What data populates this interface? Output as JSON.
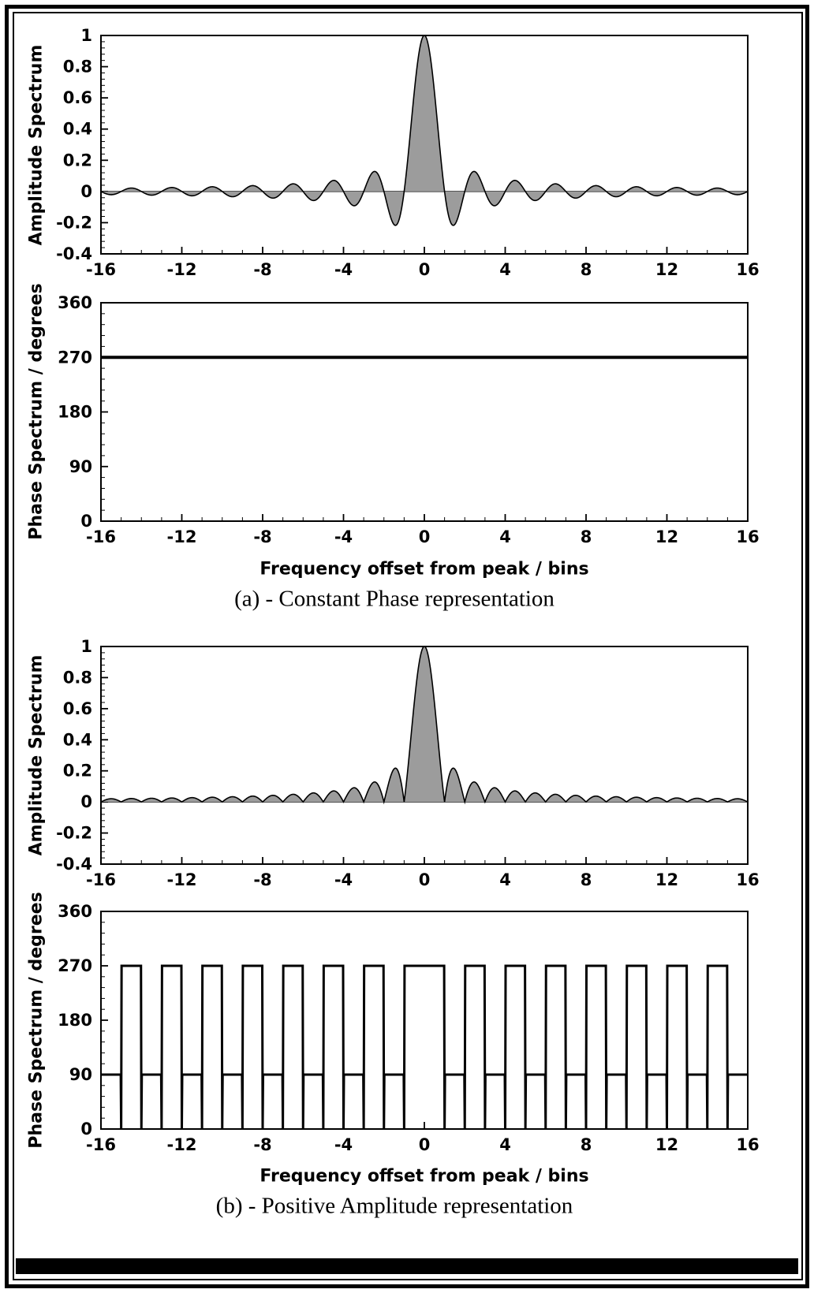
{
  "page": {
    "background": "#ffffff",
    "frame_color": "#000000"
  },
  "captions": {
    "a": "(a) - Constant Phase representation",
    "b": "(b) - Positive Amplitude representation"
  },
  "colors": {
    "area_fill": "#9c9c9c",
    "line": "#000000"
  },
  "chart_data": [
    {
      "id": "amplitude-constant-phase",
      "type": "area",
      "title": "",
      "xlabel": "",
      "ylabel": "Amplitude Spectrum",
      "xlim": [
        -16,
        16
      ],
      "ylim": [
        -0.4,
        1
      ],
      "xticks": [
        -16,
        -12,
        -8,
        -4,
        0,
        4,
        8,
        12,
        16
      ],
      "yticks": [
        -0.4,
        -0.2,
        0,
        0.2,
        0.4,
        0.6,
        0.8,
        1
      ],
      "x_minor_step": 1,
      "y_minor_step": 0.04,
      "grid": false,
      "zero_line": true,
      "series": [
        {
          "name": "sinc-amplitude",
          "formula": "sinc",
          "description": "sin(pi*x)/(pi*x), signed sidelobes alternate above and below zero",
          "fill": "#9c9c9c",
          "stroke": "#000000",
          "peak": {
            "x": 0,
            "y": 1
          },
          "zeros": "every nonzero integer bin offset",
          "symmetry": "even",
          "sidelobe_extrema": [
            {
              "x": 1.43,
              "y": -0.217
            },
            {
              "x": 2.46,
              "y": 0.128
            },
            {
              "x": 3.47,
              "y": -0.091
            },
            {
              "x": 4.48,
              "y": 0.071
            },
            {
              "x": 5.48,
              "y": -0.058
            },
            {
              "x": 6.48,
              "y": 0.049
            },
            {
              "x": 7.49,
              "y": -0.042
            },
            {
              "x": 8.49,
              "y": 0.037
            },
            {
              "x": 9.49,
              "y": -0.033
            },
            {
              "x": 10.49,
              "y": 0.03
            },
            {
              "x": 11.49,
              "y": -0.028
            },
            {
              "x": 12.49,
              "y": 0.025
            },
            {
              "x": 13.49,
              "y": -0.024
            },
            {
              "x": 14.49,
              "y": 0.022
            },
            {
              "x": 15.5,
              "y": -0.021
            }
          ]
        }
      ]
    },
    {
      "id": "phase-constant",
      "type": "line",
      "title": "",
      "xlabel": "Frequency offset from peak / bins",
      "ylabel": "Phase Spectrum / degrees",
      "xlim": [
        -16,
        16
      ],
      "ylim": [
        0,
        360
      ],
      "xticks": [
        -16,
        -12,
        -8,
        -4,
        0,
        4,
        8,
        12,
        16
      ],
      "yticks": [
        0,
        90,
        180,
        270,
        360
      ],
      "x_minor_step": 1,
      "y_minor_step": 18,
      "grid": false,
      "zero_line": false,
      "series": [
        {
          "name": "constant-phase",
          "constant": 270,
          "description": "flat phase of 270 degrees across all bins"
        }
      ]
    },
    {
      "id": "amplitude-positive",
      "type": "area",
      "title": "",
      "xlabel": "",
      "ylabel": "Amplitude Spectrum",
      "xlim": [
        -16,
        16
      ],
      "ylim": [
        -0.4,
        1
      ],
      "xticks": [
        -16,
        -12,
        -8,
        -4,
        0,
        4,
        8,
        12,
        16
      ],
      "yticks": [
        -0.4,
        -0.2,
        0,
        0.2,
        0.4,
        0.6,
        0.8,
        1
      ],
      "x_minor_step": 1,
      "y_minor_step": 0.04,
      "grid": false,
      "zero_line": true,
      "series": [
        {
          "name": "abs-sinc-amplitude",
          "formula": "abs_sinc",
          "description": "|sin(pi*x)/(pi*x)|, all lobes folded positive",
          "fill": "#9c9c9c",
          "stroke": "#000000",
          "peak": {
            "x": 0,
            "y": 1
          },
          "zeros": "every nonzero integer bin offset",
          "symmetry": "even",
          "sidelobe_extrema": [
            {
              "x": 1.43,
              "y": 0.217
            },
            {
              "x": 2.46,
              "y": 0.128
            },
            {
              "x": 3.47,
              "y": 0.091
            },
            {
              "x": 4.48,
              "y": 0.071
            },
            {
              "x": 5.48,
              "y": 0.058
            },
            {
              "x": 6.48,
              "y": 0.049
            },
            {
              "x": 7.49,
              "y": 0.042
            },
            {
              "x": 8.49,
              "y": 0.037
            },
            {
              "x": 9.49,
              "y": 0.033
            },
            {
              "x": 10.49,
              "y": 0.03
            },
            {
              "x": 11.49,
              "y": 0.028
            },
            {
              "x": 12.49,
              "y": 0.025
            },
            {
              "x": 13.49,
              "y": 0.024
            },
            {
              "x": 14.49,
              "y": 0.022
            },
            {
              "x": 15.5,
              "y": 0.021
            }
          ]
        }
      ]
    },
    {
      "id": "phase-alternating",
      "type": "line",
      "title": "",
      "xlabel": "Frequency offset from peak / bins",
      "ylabel": "Phase Spectrum / degrees",
      "xlim": [
        -16,
        16
      ],
      "ylim": [
        0,
        360
      ],
      "xticks": [
        -16,
        -12,
        -8,
        -4,
        0,
        4,
        8,
        12,
        16
      ],
      "yticks": [
        0,
        90,
        180,
        270,
        360
      ],
      "x_minor_step": 1,
      "y_minor_step": 18,
      "grid": false,
      "zero_line": false,
      "series": [
        {
          "name": "alternating-phase",
          "description": "square wave: 270 deg where signed amplitude positive, 90 deg where negative, dips to 0 at integer-bin zero crossings",
          "zero_spikes_at_nonzero_integers": true,
          "segments": [
            {
              "from": -16,
              "to": -15,
              "phase": 90
            },
            {
              "from": -15,
              "to": -14,
              "phase": 270
            },
            {
              "from": -14,
              "to": -13,
              "phase": 90
            },
            {
              "from": -13,
              "to": -12,
              "phase": 270
            },
            {
              "from": -12,
              "to": -11,
              "phase": 90
            },
            {
              "from": -11,
              "to": -10,
              "phase": 270
            },
            {
              "from": -10,
              "to": -9,
              "phase": 90
            },
            {
              "from": -9,
              "to": -8,
              "phase": 270
            },
            {
              "from": -8,
              "to": -7,
              "phase": 90
            },
            {
              "from": -7,
              "to": -6,
              "phase": 270
            },
            {
              "from": -6,
              "to": -5,
              "phase": 90
            },
            {
              "from": -5,
              "to": -4,
              "phase": 270
            },
            {
              "from": -4,
              "to": -3,
              "phase": 90
            },
            {
              "from": -3,
              "to": -2,
              "phase": 270
            },
            {
              "from": -2,
              "to": -1,
              "phase": 90
            },
            {
              "from": -1,
              "to": 1,
              "phase": 270
            },
            {
              "from": 1,
              "to": 2,
              "phase": 90
            },
            {
              "from": 2,
              "to": 3,
              "phase": 270
            },
            {
              "from": 3,
              "to": 4,
              "phase": 90
            },
            {
              "from": 4,
              "to": 5,
              "phase": 270
            },
            {
              "from": 5,
              "to": 6,
              "phase": 90
            },
            {
              "from": 6,
              "to": 7,
              "phase": 270
            },
            {
              "from": 7,
              "to": 8,
              "phase": 90
            },
            {
              "from": 8,
              "to": 9,
              "phase": 270
            },
            {
              "from": 9,
              "to": 10,
              "phase": 90
            },
            {
              "from": 10,
              "to": 11,
              "phase": 270
            },
            {
              "from": 11,
              "to": 12,
              "phase": 90
            },
            {
              "from": 12,
              "to": 13,
              "phase": 270
            },
            {
              "from": 13,
              "to": 14,
              "phase": 90
            },
            {
              "from": 14,
              "to": 15,
              "phase": 270
            },
            {
              "from": 15,
              "to": 16,
              "phase": 90
            }
          ]
        }
      ]
    }
  ]
}
